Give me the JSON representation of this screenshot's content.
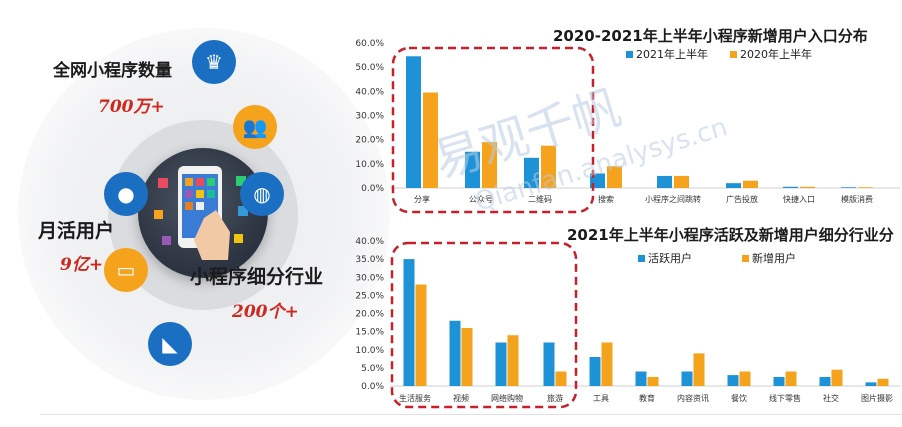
{
  "infographic": {
    "mini_program_count": {
      "label": "全网小程序数量",
      "value": "700万+"
    },
    "monthly_active": {
      "label": "月活用户",
      "value": "9亿+"
    },
    "segments": {
      "label": "小程序细分行业",
      "value": "200个+"
    }
  },
  "watermark": {
    "main": "易观千帆",
    "sub": "Qianfan.analysys.cn"
  },
  "colors": {
    "series_a": "#1d92d6",
    "series_b": "#f5a21c",
    "highlight_box": "#c8202a",
    "icon_blue": "#1b6fc2",
    "icon_orange": "#f5a21c"
  },
  "chart_data": [
    {
      "type": "bar",
      "title": "2020-2021年上半年小程序新增用户入口分布",
      "categories": [
        "分享",
        "公众号",
        "二维码",
        "搜索",
        "小程序之间跳转",
        "广告投放",
        "快捷入口",
        "模版消费"
      ],
      "series": [
        {
          "name": "2021年上半年",
          "values": [
            54.5,
            15.0,
            12.5,
            6.0,
            5.0,
            2.0,
            0.5,
            0.3
          ]
        },
        {
          "name": "2020年上半年",
          "values": [
            39.5,
            19.0,
            17.5,
            9.0,
            5.0,
            3.0,
            0.5,
            0.3
          ]
        }
      ],
      "y_ticks": [
        "0.0%",
        "10.0%",
        "20.0%",
        "30.0%",
        "40.0%",
        "50.0%",
        "60.0%"
      ],
      "ylim": [
        0,
        60
      ],
      "legend_position": "top-right",
      "highlight_first_n": 3
    },
    {
      "type": "bar",
      "title": "2021年上半年小程序活跃及新增用户细分行业分",
      "categories": [
        "生活服务",
        "视频",
        "网络购物",
        "旅游",
        "工具",
        "教育",
        "内容资讯",
        "餐饮",
        "线下零售",
        "社交",
        "图片摄影"
      ],
      "series": [
        {
          "name": "活跃用户",
          "values": [
            35.0,
            18.0,
            12.0,
            12.0,
            8.0,
            4.0,
            4.0,
            3.0,
            2.5,
            2.5,
            1.0
          ]
        },
        {
          "name": "新增用户",
          "values": [
            28.0,
            16.0,
            14.0,
            4.0,
            12.0,
            2.5,
            9.0,
            4.0,
            4.0,
            4.5,
            2.0
          ]
        }
      ],
      "y_ticks": [
        "0.0%",
        "5.0%",
        "10.0%",
        "15.0%",
        "20.0%",
        "25.0%",
        "30.0%",
        "35.0%",
        "40.0%"
      ],
      "ylim": [
        0,
        40
      ],
      "legend_position": "top-right",
      "highlight_first_n": 4
    }
  ]
}
